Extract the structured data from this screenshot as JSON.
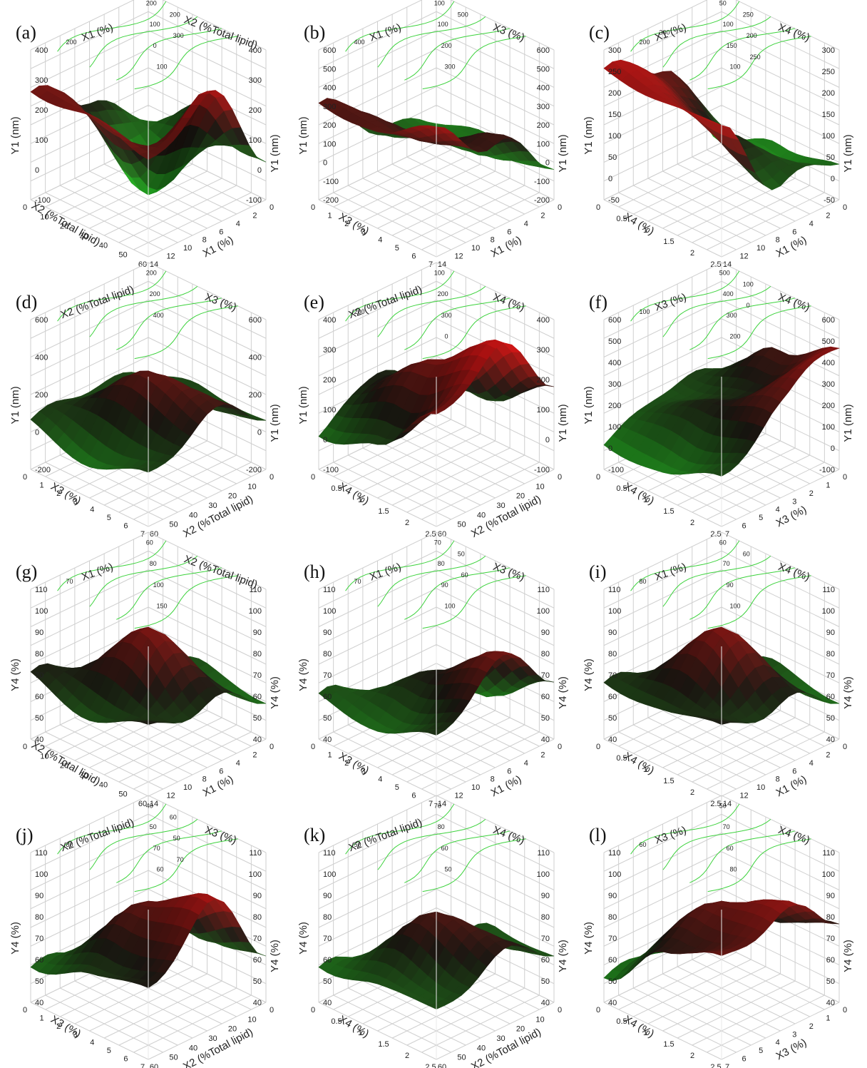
{
  "colors": {
    "surface_high": "#c81414",
    "surface_mid": "#1e1a14",
    "surface_low": "#22c022",
    "contour": "#3cd23c",
    "gridline": "#cfcfcf",
    "text": "#222222"
  },
  "panels": [
    {
      "letter": "(a)",
      "response": "Y1 (nm)",
      "xlabel": "X1 (%)",
      "ylabel": "X2 (%Total lipid)",
      "x_ticks": [
        "0",
        "2",
        "4",
        "6",
        "8",
        "10",
        "12",
        "14"
      ],
      "y_ticks": [
        "0",
        "10",
        "20",
        "30",
        "40",
        "50",
        "60"
      ],
      "z_ticks": [
        "-100",
        "0",
        "100",
        "200",
        "300",
        "400"
      ],
      "contours": [
        "200",
        "100",
        "0",
        "100",
        "200",
        "200",
        "300"
      ]
    },
    {
      "letter": "(b)",
      "response": "Y1 (nm)",
      "xlabel": "X1 (%)",
      "ylabel": "X3 (%)",
      "x_ticks": [
        "0",
        "2",
        "4",
        "6",
        "8",
        "10",
        "12",
        "14"
      ],
      "y_ticks": [
        "0",
        "1",
        "2",
        "3",
        "4",
        "5",
        "6",
        "7"
      ],
      "z_ticks": [
        "-200",
        "-100",
        "0",
        "100",
        "200",
        "300",
        "400",
        "500",
        "600"
      ],
      "contours": [
        "100",
        "100",
        "200",
        "300",
        "400",
        "500"
      ]
    },
    {
      "letter": "(c)",
      "response": "Y1 (nm)",
      "xlabel": "X1 (%)",
      "ylabel": "X4 (%)",
      "x_ticks": [
        "0",
        "2",
        "4",
        "6",
        "8",
        "10",
        "12",
        "14"
      ],
      "y_ticks": [
        "0",
        "0.5",
        "1",
        "1.5",
        "2",
        "2.5"
      ],
      "z_ticks": [
        "-50",
        "0",
        "50",
        "100",
        "150",
        "200",
        "250",
        "300"
      ],
      "contours": [
        "50",
        "100",
        "150",
        "100",
        "200",
        "250",
        "200",
        "250",
        "300"
      ]
    },
    {
      "letter": "(d)",
      "response": "Y1 (nm)",
      "xlabel": "X2 (%Total lipid)",
      "ylabel": "X3 (%)",
      "x_ticks": [
        "0",
        "10",
        "20",
        "30",
        "40",
        "50",
        "60"
      ],
      "y_ticks": [
        "0",
        "1",
        "2",
        "3",
        "4",
        "5",
        "6",
        "7"
      ],
      "z_ticks": [
        "-200",
        "0",
        "200",
        "400",
        "600"
      ],
      "contours": [
        "200",
        "200",
        "400"
      ]
    },
    {
      "letter": "(e)",
      "response": "Y1 (nm)",
      "xlabel": "X2 (%Total lipid)",
      "ylabel": "X4 (%)",
      "x_ticks": [
        "0",
        "10",
        "20",
        "30",
        "40",
        "50",
        "60"
      ],
      "y_ticks": [
        "0",
        "0.5",
        "1",
        "1.5",
        "2",
        "2.5"
      ],
      "z_ticks": [
        "-100",
        "0",
        "100",
        "200",
        "300",
        "400"
      ],
      "contours": [
        "100",
        "200",
        "300",
        "0",
        "200"
      ]
    },
    {
      "letter": "(f)",
      "response": "Y1 (nm)",
      "xlabel": "X3 (%)",
      "ylabel": "X4 (%)",
      "x_ticks": [
        "0",
        "1",
        "2",
        "3",
        "4",
        "5",
        "6",
        "7"
      ],
      "y_ticks": [
        "0",
        "0.5",
        "1",
        "1.5",
        "2",
        "2.5"
      ],
      "z_ticks": [
        "-100",
        "0",
        "100",
        "200",
        "300",
        "400",
        "500",
        "600"
      ],
      "contours": [
        "500",
        "400",
        "300",
        "200",
        "100",
        "100",
        "0"
      ]
    },
    {
      "letter": "(g)",
      "response": "Y4 (%)",
      "xlabel": "X1 (%)",
      "ylabel": "X2 (%Total lipid)",
      "x_ticks": [
        "0",
        "2",
        "4",
        "6",
        "8",
        "10",
        "12",
        "14"
      ],
      "y_ticks": [
        "0",
        "10",
        "20",
        "30",
        "40",
        "50",
        "60"
      ],
      "z_ticks": [
        "40",
        "50",
        "60",
        "70",
        "80",
        "90",
        "100",
        "110"
      ],
      "contours": [
        "60",
        "80",
        "100",
        "150",
        "70"
      ]
    },
    {
      "letter": "(h)",
      "response": "Y4 (%)",
      "xlabel": "X1 (%)",
      "ylabel": "X3 (%)",
      "x_ticks": [
        "0",
        "2",
        "4",
        "6",
        "8",
        "10",
        "12",
        "14"
      ],
      "y_ticks": [
        "0",
        "1",
        "2",
        "3",
        "4",
        "5",
        "6",
        "7"
      ],
      "z_ticks": [
        "40",
        "50",
        "60",
        "70",
        "80",
        "90",
        "100",
        "110"
      ],
      "contours": [
        "70",
        "80",
        "90",
        "100",
        "70",
        "50",
        "60"
      ]
    },
    {
      "letter": "(i)",
      "response": "Y4 (%)",
      "xlabel": "X1 (%)",
      "ylabel": "X4 (%)",
      "x_ticks": [
        "0",
        "2",
        "4",
        "6",
        "8",
        "10",
        "12",
        "14"
      ],
      "y_ticks": [
        "0",
        "0.5",
        "1",
        "1.5",
        "2",
        "2.5"
      ],
      "z_ticks": [
        "40",
        "50",
        "60",
        "70",
        "80",
        "90",
        "100",
        "110"
      ],
      "contours": [
        "60",
        "70",
        "90",
        "100",
        "80",
        "60"
      ]
    },
    {
      "letter": "(j)",
      "response": "Y4 (%)",
      "xlabel": "X2 (%Total lipid)",
      "ylabel": "X3 (%)",
      "x_ticks": [
        "0",
        "10",
        "20",
        "30",
        "40",
        "50",
        "60"
      ],
      "y_ticks": [
        "0",
        "1",
        "2",
        "3",
        "4",
        "5",
        "6",
        "7"
      ],
      "z_ticks": [
        "40",
        "50",
        "60",
        "70",
        "80",
        "90",
        "100",
        "110"
      ],
      "contours": [
        "40",
        "50",
        "70",
        "60",
        "80",
        "60",
        "50",
        "70"
      ]
    },
    {
      "letter": "(k)",
      "response": "Y4 (%)",
      "xlabel": "X2 (%Total lipid)",
      "ylabel": "X4 (%)",
      "x_ticks": [
        "0",
        "10",
        "20",
        "30",
        "40",
        "50",
        "60"
      ],
      "y_ticks": [
        "0",
        "0.5",
        "1",
        "1.5",
        "2",
        "2.5"
      ],
      "z_ticks": [
        "40",
        "50",
        "60",
        "70",
        "80",
        "90",
        "100",
        "110"
      ],
      "contours": [
        "70",
        "80",
        "60",
        "50",
        "50"
      ]
    },
    {
      "letter": "(l)",
      "response": "Y4 (%)",
      "xlabel": "X3 (%)",
      "ylabel": "X4 (%)",
      "x_ticks": [
        "0",
        "1",
        "2",
        "3",
        "4",
        "5",
        "6",
        "7"
      ],
      "y_ticks": [
        "0",
        "0.5",
        "1",
        "1.5",
        "2",
        "2.5"
      ],
      "z_ticks": [
        "40",
        "50",
        "60",
        "70",
        "80",
        "90",
        "100",
        "110"
      ],
      "contours": [
        "50",
        "70",
        "60",
        "80",
        "60"
      ]
    }
  ],
  "chart_data": [
    {
      "type": "surface",
      "panel": "(a)",
      "x_label": "X1 (%)",
      "y_label": "X2 (%Total lipid)",
      "z_label": "Y1 (nm)",
      "xlim": [
        0,
        14
      ],
      "ylim": [
        0,
        60
      ],
      "zlim": [
        -100,
        400
      ],
      "grid": true,
      "x": [
        0,
        7,
        14
      ],
      "y": [
        0,
        30,
        60
      ],
      "z": [
        [
          -50,
          150,
          250
        ],
        [
          100,
          -100,
          300
        ],
        [
          50,
          350,
          200
        ]
      ]
    },
    {
      "type": "surface",
      "panel": "(b)",
      "x_label": "X1 (%)",
      "y_label": "X3 (%)",
      "z_label": "Y1 (nm)",
      "xlim": [
        0,
        14
      ],
      "ylim": [
        0,
        7
      ],
      "zlim": [
        -200,
        600
      ],
      "grid": true,
      "x": [
        0,
        7,
        14
      ],
      "y": [
        0,
        3.5,
        7
      ],
      "z": [
        [
          -100,
          50,
          300
        ],
        [
          -50,
          100,
          350
        ],
        [
          0,
          250,
          450
        ]
      ]
    },
    {
      "type": "surface",
      "panel": "(c)",
      "x_label": "X1 (%)",
      "y_label": "X4 (%)",
      "z_label": "Y1 (nm)",
      "xlim": [
        0,
        14
      ],
      "ylim": [
        0,
        2.5
      ],
      "zlim": [
        -50,
        300
      ],
      "grid": true,
      "x": [
        0,
        7,
        14
      ],
      "y": [
        0,
        1.25,
        2.5
      ],
      "z": [
        [
          -50,
          200,
          250
        ],
        [
          0,
          100,
          260
        ],
        [
          50,
          50,
          240
        ]
      ]
    },
    {
      "type": "surface",
      "panel": "(d)",
      "x_label": "X2 (%Total lipid)",
      "y_label": "X3 (%)",
      "z_label": "Y1 (nm)",
      "xlim": [
        0,
        60
      ],
      "ylim": [
        0,
        7
      ],
      "zlim": [
        -200,
        600
      ],
      "grid": true,
      "x": [
        0,
        30,
        60
      ],
      "y": [
        0,
        3.5,
        7
      ],
      "z": [
        [
          0,
          100,
          50
        ],
        [
          50,
          300,
          0
        ],
        [
          100,
          250,
          50
        ]
      ]
    },
    {
      "type": "surface",
      "panel": "(e)",
      "x_label": "X2 (%Total lipid)",
      "y_label": "X4 (%)",
      "z_label": "Y1 (nm)",
      "xlim": [
        0,
        60
      ],
      "ylim": [
        0,
        2.5
      ],
      "zlim": [
        -100,
        400
      ],
      "grid": true,
      "x": [
        0,
        30,
        60
      ],
      "y": [
        0,
        1.25,
        2.5
      ],
      "z": [
        [
          -50,
          150,
          0
        ],
        [
          50,
          250,
          100
        ],
        [
          200,
          400,
          250
        ]
      ]
    },
    {
      "type": "surface",
      "panel": "(f)",
      "x_label": "X3 (%)",
      "y_label": "X4 (%)",
      "z_label": "Y1 (nm)",
      "xlim": [
        0,
        7
      ],
      "ylim": [
        0,
        2.5
      ],
      "zlim": [
        -100,
        600
      ],
      "grid": true,
      "x": [
        0,
        3.5,
        7
      ],
      "y": [
        0,
        1.25,
        2.5
      ],
      "z": [
        [
          100,
          150,
          0
        ],
        [
          300,
          200,
          50
        ],
        [
          500,
          350,
          100
        ]
      ]
    },
    {
      "type": "surface",
      "panel": "(g)",
      "x_label": "X1 (%)",
      "y_label": "X2 (%Total lipid)",
      "z_label": "Y4 (%)",
      "xlim": [
        0,
        14
      ],
      "ylim": [
        0,
        60
      ],
      "zlim": [
        40,
        110
      ],
      "grid": true,
      "x": [
        0,
        7,
        14
      ],
      "y": [
        0,
        30,
        60
      ],
      "z": [
        [
          50,
          60,
          70
        ],
        [
          60,
          90,
          65
        ],
        [
          60,
          70,
          70
        ]
      ]
    },
    {
      "type": "surface",
      "panel": "(h)",
      "x_label": "X1 (%)",
      "y_label": "X3 (%)",
      "z_label": "Y4 (%)",
      "xlim": [
        0,
        14
      ],
      "ylim": [
        0,
        7
      ],
      "zlim": [
        40,
        110
      ],
      "grid": true,
      "x": [
        0,
        7,
        14
      ],
      "y": [
        0,
        3.5,
        7
      ],
      "z": [
        [
          40,
          50,
          60
        ],
        [
          50,
          70,
          60
        ],
        [
          70,
          90,
          65
        ]
      ]
    },
    {
      "type": "surface",
      "panel": "(i)",
      "x_label": "X1 (%)",
      "y_label": "X4 (%)",
      "z_label": "Y4 (%)",
      "xlim": [
        0,
        14
      ],
      "ylim": [
        0,
        2.5
      ],
      "zlim": [
        40,
        110
      ],
      "grid": true,
      "x": [
        0,
        7,
        14
      ],
      "y": [
        0,
        1.25,
        2.5
      ],
      "z": [
        [
          50,
          60,
          65
        ],
        [
          60,
          90,
          70
        ],
        [
          60,
          70,
          70
        ]
      ]
    },
    {
      "type": "surface",
      "panel": "(j)",
      "x_label": "X2 (%Total lipid)",
      "y_label": "X3 (%)",
      "z_label": "Y4 (%)",
      "xlim": [
        0,
        60
      ],
      "ylim": [
        0,
        7
      ],
      "zlim": [
        40,
        110
      ],
      "grid": true,
      "x": [
        0,
        30,
        60
      ],
      "y": [
        0,
        3.5,
        7
      ],
      "z": [
        [
          40,
          55,
          55
        ],
        [
          60,
          85,
          70
        ],
        [
          65,
          100,
          70
        ]
      ]
    },
    {
      "type": "surface",
      "panel": "(k)",
      "x_label": "X2 (%Total lipid)",
      "y_label": "X4 (%)",
      "z_label": "Y4 (%)",
      "xlim": [
        0,
        60
      ],
      "ylim": [
        0,
        2.5
      ],
      "zlim": [
        40,
        110
      ],
      "grid": true,
      "x": [
        0,
        30,
        60
      ],
      "y": [
        0,
        1.25,
        2.5
      ],
      "z": [
        [
          40,
          50,
          55
        ],
        [
          60,
          80,
          65
        ],
        [
          65,
          75,
          60
        ]
      ]
    },
    {
      "type": "surface",
      "panel": "(l)",
      "x_label": "X3 (%)",
      "y_label": "X4 (%)",
      "z_label": "Y4 (%)",
      "xlim": [
        0,
        7
      ],
      "ylim": [
        0,
        2.5
      ],
      "zlim": [
        40,
        110
      ],
      "grid": true,
      "x": [
        0,
        3.5,
        7
      ],
      "y": [
        0,
        1.25,
        2.5
      ],
      "z": [
        [
          40,
          55,
          50
        ],
        [
          70,
          85,
          80
        ],
        [
          80,
          95,
          85
        ]
      ]
    }
  ]
}
